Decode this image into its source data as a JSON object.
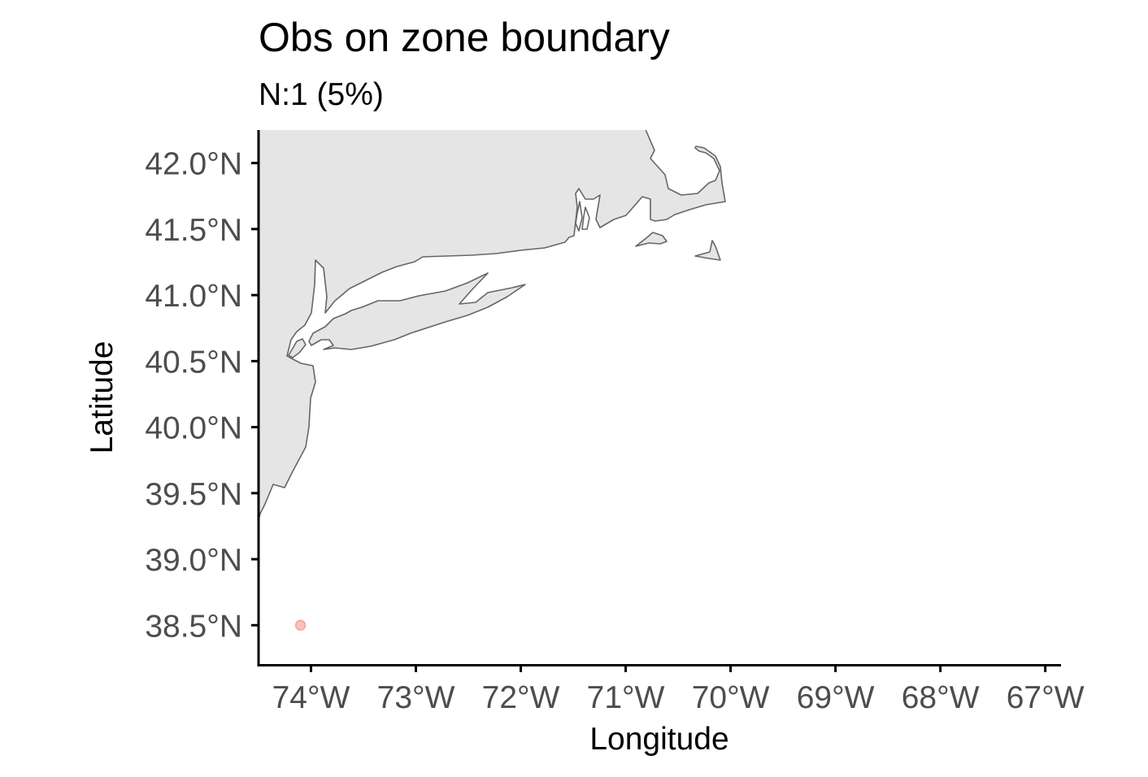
{
  "chart_data": {
    "type": "scatter",
    "title": "Obs on zone boundary",
    "subtitle": "N:1 (5%)",
    "xlabel": "Longitude",
    "ylabel": "Latitude",
    "xlim": [
      -74.5,
      -66.85
    ],
    "ylim": [
      38.2,
      42.25
    ],
    "x_ticks": [
      {
        "value": -74,
        "label": "74°W"
      },
      {
        "value": -73,
        "label": "73°W"
      },
      {
        "value": -72,
        "label": "72°W"
      },
      {
        "value": -71,
        "label": "71°W"
      },
      {
        "value": -70,
        "label": "70°W"
      },
      {
        "value": -69,
        "label": "69°W"
      },
      {
        "value": -68,
        "label": "68°W"
      },
      {
        "value": -67,
        "label": "67°W"
      }
    ],
    "y_ticks": [
      {
        "value": 42.0,
        "label": "42.0°N"
      },
      {
        "value": 41.5,
        "label": "41.5°N"
      },
      {
        "value": 41.0,
        "label": "41.0°N"
      },
      {
        "value": 40.5,
        "label": "40.5°N"
      },
      {
        "value": 40.0,
        "label": "40.0°N"
      },
      {
        "value": 39.5,
        "label": "39.5°N"
      },
      {
        "value": 39.0,
        "label": "39.0°N"
      },
      {
        "value": 38.5,
        "label": "38.5°N"
      }
    ],
    "points": [
      {
        "x": -74.1,
        "y": 38.5
      }
    ],
    "point_color": "#f8766d",
    "grid": false,
    "basemap": "US northeast coastline (land polygons)"
  }
}
